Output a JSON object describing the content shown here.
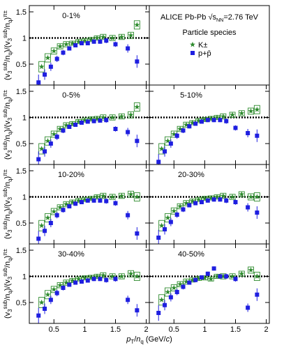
{
  "chart_data": {
    "type": "scatter",
    "ylabel_parts": [
      {
        "text": "(v"
      },
      {
        "text": "3",
        "shift": "sub"
      },
      {
        "text": "sub",
        "shift": "sup"
      },
      {
        "text": "/n"
      },
      {
        "text": "q",
        "shift": "sub"
      },
      {
        "text": ")/(v"
      },
      {
        "text": "3",
        "shift": "sub"
      },
      {
        "text": "sub",
        "shift": "sup"
      },
      {
        "text": "/n"
      },
      {
        "text": "q",
        "shift": "sub"
      },
      {
        "text": ")"
      },
      {
        "text": "π±",
        "shift": "sup"
      }
    ],
    "xlabel_parts": [
      {
        "text": "p",
        "italic": true
      },
      {
        "text": "T",
        "shift": "sub"
      },
      {
        "text": "/"
      },
      {
        "text": "n",
        "italic": true
      },
      {
        "text": "q",
        "shift": "sub"
      },
      {
        "text": " (GeV/"
      },
      {
        "text": "c",
        "italic": true
      },
      {
        "text": ")"
      }
    ],
    "annotation_parts": [
      {
        "text": "ALICE Pb-Pb "
      },
      {
        "text": "√s"
      },
      {
        "text": "NN",
        "shift": "sub"
      },
      {
        "text": "=2.76 TeV"
      }
    ],
    "legend_title": "Particle species",
    "series_styles": [
      {
        "name": "K±",
        "color": "#2e8b2e",
        "marker": "star"
      },
      {
        "name": "p+p̄",
        "color": "#1f1fe0",
        "marker": "square"
      }
    ],
    "xlim": [
      0.1,
      2.05
    ],
    "ylim": [
      0.1,
      1.62
    ],
    "xticks": [
      0.5,
      1,
      1.5,
      2
    ],
    "yticks": [
      0.5,
      1,
      1.5
    ],
    "reference_line": 1,
    "panels": [
      {
        "label": "0-1%",
        "series": [
          {
            "x": [
              0.3,
              0.4,
              0.5,
              0.6,
              0.7,
              0.8,
              0.9,
              1.0,
              1.1,
              1.2,
              1.3,
              1.45,
              1.6,
              1.75,
              1.85
            ],
            "values": [
              0.45,
              0.62,
              0.75,
              0.84,
              0.88,
              0.9,
              0.93,
              0.95,
              0.97,
              1.0,
              1.02,
              1.0,
              1.02,
              1.05,
              1.25
            ],
            "errors": [
              0.1,
              0.08,
              0.06,
              0.05,
              0.05,
              0.04,
              0.04,
              0.04,
              0.04,
              0.04,
              0.05,
              0.05,
              0.05,
              0.06,
              0.08
            ]
          },
          {
            "x": [
              0.25,
              0.35,
              0.45,
              0.55,
              0.65,
              0.75,
              0.85,
              0.95,
              1.05,
              1.15,
              1.25,
              1.35,
              1.5,
              1.7,
              1.85
            ],
            "values": [
              0.15,
              0.3,
              0.45,
              0.6,
              0.72,
              0.8,
              0.86,
              0.9,
              0.9,
              0.93,
              0.93,
              0.95,
              0.88,
              0.8,
              0.55
            ],
            "errors": [
              0.15,
              0.1,
              0.08,
              0.06,
              0.05,
              0.04,
              0.04,
              0.04,
              0.04,
              0.04,
              0.04,
              0.05,
              0.05,
              0.08,
              0.12
            ]
          }
        ]
      },
      {
        "label": "0-5%",
        "series": [
          {
            "x": [
              0.3,
              0.4,
              0.5,
              0.6,
              0.7,
              0.8,
              0.9,
              1.0,
              1.1,
              1.2,
              1.3,
              1.45,
              1.6,
              1.75,
              1.85
            ],
            "values": [
              0.4,
              0.55,
              0.68,
              0.78,
              0.85,
              0.88,
              0.92,
              0.95,
              0.97,
              0.98,
              1.0,
              1.0,
              1.02,
              1.05,
              1.2
            ],
            "errors": [
              0.1,
              0.08,
              0.06,
              0.05,
              0.05,
              0.04,
              0.04,
              0.04,
              0.04,
              0.04,
              0.05,
              0.05,
              0.05,
              0.06,
              0.08
            ]
          },
          {
            "x": [
              0.25,
              0.35,
              0.45,
              0.55,
              0.65,
              0.75,
              0.85,
              0.95,
              1.05,
              1.15,
              1.25,
              1.35,
              1.5,
              1.7,
              1.85
            ],
            "values": [
              0.2,
              0.35,
              0.5,
              0.63,
              0.75,
              0.82,
              0.86,
              0.9,
              0.92,
              0.93,
              0.94,
              0.95,
              0.78,
              0.72,
              0.55
            ],
            "errors": [
              0.15,
              0.1,
              0.08,
              0.06,
              0.05,
              0.04,
              0.04,
              0.04,
              0.04,
              0.04,
              0.04,
              0.05,
              0.05,
              0.08,
              0.12
            ]
          }
        ]
      },
      {
        "label": "5-10%",
        "series": [
          {
            "x": [
              0.3,
              0.4,
              0.5,
              0.6,
              0.7,
              0.8,
              0.9,
              1.0,
              1.1,
              1.2,
              1.3,
              1.45,
              1.6,
              1.75,
              1.85
            ],
            "values": [
              0.4,
              0.55,
              0.68,
              0.78,
              0.86,
              0.9,
              0.94,
              0.96,
              0.98,
              1.0,
              1.02,
              1.05,
              1.08,
              1.12,
              1.15
            ],
            "errors": [
              0.1,
              0.08,
              0.06,
              0.05,
              0.05,
              0.04,
              0.04,
              0.04,
              0.04,
              0.04,
              0.05,
              0.05,
              0.05,
              0.06,
              0.08
            ]
          },
          {
            "x": [
              0.25,
              0.35,
              0.45,
              0.55,
              0.65,
              0.75,
              0.85,
              0.95,
              1.05,
              1.15,
              1.25,
              1.35,
              1.5,
              1.7,
              1.85
            ],
            "values": [
              0.15,
              0.35,
              0.5,
              0.65,
              0.75,
              0.83,
              0.88,
              0.92,
              0.95,
              0.95,
              0.95,
              0.93,
              0.8,
              0.7,
              0.65
            ],
            "errors": [
              0.15,
              0.1,
              0.08,
              0.06,
              0.05,
              0.04,
              0.04,
              0.04,
              0.04,
              0.04,
              0.04,
              0.05,
              0.05,
              0.08,
              0.12
            ]
          }
        ]
      },
      {
        "label": "10-20%",
        "series": [
          {
            "x": [
              0.3,
              0.4,
              0.5,
              0.6,
              0.7,
              0.8,
              0.9,
              1.0,
              1.1,
              1.2,
              1.3,
              1.45,
              1.6,
              1.75,
              1.85
            ],
            "values": [
              0.45,
              0.6,
              0.72,
              0.8,
              0.86,
              0.9,
              0.93,
              0.95,
              0.97,
              1.0,
              1.02,
              1.0,
              1.02,
              1.05,
              1.0
            ],
            "errors": [
              0.1,
              0.08,
              0.06,
              0.05,
              0.05,
              0.04,
              0.04,
              0.04,
              0.04,
              0.04,
              0.05,
              0.05,
              0.05,
              0.06,
              0.08
            ]
          },
          {
            "x": [
              0.25,
              0.35,
              0.45,
              0.55,
              0.65,
              0.75,
              0.85,
              0.95,
              1.05,
              1.15,
              1.25,
              1.35,
              1.5,
              1.7,
              1.85
            ],
            "values": [
              0.2,
              0.35,
              0.5,
              0.65,
              0.75,
              0.82,
              0.87,
              0.9,
              0.93,
              0.93,
              0.93,
              0.92,
              0.88,
              0.65,
              0.3
            ],
            "errors": [
              0.15,
              0.1,
              0.08,
              0.06,
              0.05,
              0.04,
              0.04,
              0.04,
              0.04,
              0.04,
              0.04,
              0.05,
              0.05,
              0.08,
              0.12
            ]
          }
        ]
      },
      {
        "label": "20-30%",
        "series": [
          {
            "x": [
              0.3,
              0.4,
              0.5,
              0.6,
              0.7,
              0.8,
              0.9,
              1.0,
              1.1,
              1.2,
              1.3,
              1.45,
              1.6,
              1.75,
              1.85
            ],
            "values": [
              0.45,
              0.6,
              0.73,
              0.82,
              0.88,
              0.92,
              0.95,
              0.97,
              0.98,
              1.0,
              1.02,
              1.0,
              1.05,
              1.0,
              1.0
            ],
            "errors": [
              0.1,
              0.08,
              0.06,
              0.05,
              0.05,
              0.04,
              0.04,
              0.04,
              0.04,
              0.04,
              0.05,
              0.05,
              0.05,
              0.06,
              0.08
            ]
          },
          {
            "x": [
              0.25,
              0.35,
              0.45,
              0.55,
              0.65,
              0.75,
              0.85,
              0.95,
              1.05,
              1.15,
              1.25,
              1.35,
              1.5,
              1.7,
              1.85
            ],
            "values": [
              0.22,
              0.38,
              0.52,
              0.66,
              0.76,
              0.84,
              0.88,
              0.9,
              0.93,
              0.95,
              0.95,
              0.93,
              0.9,
              0.8,
              0.7
            ],
            "errors": [
              0.15,
              0.1,
              0.08,
              0.06,
              0.05,
              0.04,
              0.04,
              0.04,
              0.04,
              0.04,
              0.04,
              0.05,
              0.05,
              0.08,
              0.12
            ]
          }
        ]
      },
      {
        "label": "30-40%",
        "series": [
          {
            "x": [
              0.3,
              0.4,
              0.5,
              0.6,
              0.7,
              0.8,
              0.9,
              1.0,
              1.1,
              1.2,
              1.3,
              1.45,
              1.6,
              1.75,
              1.85
            ],
            "values": [
              0.5,
              0.65,
              0.75,
              0.83,
              0.88,
              0.92,
              0.95,
              0.97,
              0.98,
              1.0,
              1.02,
              1.0,
              1.0,
              1.05,
              1.0
            ],
            "errors": [
              0.1,
              0.08,
              0.06,
              0.05,
              0.05,
              0.04,
              0.04,
              0.04,
              0.04,
              0.04,
              0.05,
              0.05,
              0.05,
              0.06,
              0.08
            ]
          },
          {
            "x": [
              0.25,
              0.35,
              0.45,
              0.55,
              0.65,
              0.75,
              0.85,
              0.95,
              1.05,
              1.15,
              1.25,
              1.35,
              1.5,
              1.7,
              1.85
            ],
            "values": [
              0.25,
              0.38,
              0.55,
              0.68,
              0.78,
              0.84,
              0.88,
              0.9,
              0.92,
              0.95,
              0.95,
              0.93,
              0.95,
              0.55,
              0.35
            ],
            "errors": [
              0.15,
              0.1,
              0.08,
              0.06,
              0.05,
              0.04,
              0.04,
              0.04,
              0.04,
              0.04,
              0.04,
              0.05,
              0.05,
              0.08,
              0.12
            ]
          }
        ]
      },
      {
        "label": "40-50%",
        "series": [
          {
            "x": [
              0.3,
              0.4,
              0.5,
              0.6,
              0.7,
              0.8,
              0.9,
              1.0,
              1.1,
              1.2,
              1.3,
              1.45,
              1.6,
              1.75,
              1.85
            ],
            "values": [
              0.55,
              0.7,
              0.78,
              0.85,
              0.9,
              0.93,
              0.96,
              0.97,
              0.95,
              1.0,
              1.0,
              1.0,
              1.05,
              1.12,
              1.0
            ],
            "errors": [
              0.1,
              0.08,
              0.06,
              0.05,
              0.05,
              0.04,
              0.04,
              0.04,
              0.04,
              0.04,
              0.05,
              0.05,
              0.05,
              0.06,
              0.08
            ]
          },
          {
            "x": [
              0.25,
              0.35,
              0.45,
              0.55,
              0.65,
              0.75,
              0.85,
              0.95,
              1.05,
              1.15,
              1.25,
              1.35,
              1.5,
              1.7,
              1.85
            ],
            "values": [
              0.3,
              0.45,
              0.6,
              0.7,
              0.8,
              0.88,
              0.93,
              0.98,
              1.05,
              1.15,
              1.0,
              1.0,
              0.95,
              0.4,
              0.65
            ],
            "errors": [
              0.15,
              0.1,
              0.08,
              0.06,
              0.05,
              0.04,
              0.04,
              0.04,
              0.04,
              0.04,
              0.04,
              0.05,
              0.05,
              0.08,
              0.12
            ]
          }
        ]
      }
    ]
  }
}
